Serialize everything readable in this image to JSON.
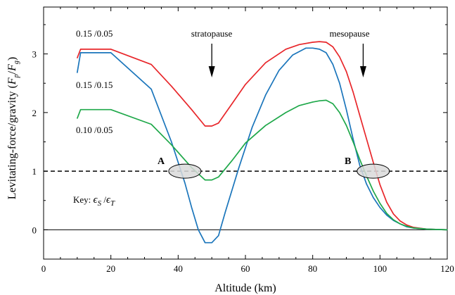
{
  "chart_data": {
    "type": "line",
    "xlabel": "Altitude (km)",
    "ylabel": "Levitating-force/gravity (F_p/F_g)",
    "ylabel_main": "Levitating-force/gravity (",
    "ylabel_fp": "F",
    "ylabel_fp_sub": "p",
    "ylabel_slash": "/",
    "ylabel_fg": "F",
    "ylabel_fg_sub": "g",
    "ylabel_close": ")",
    "xlim": [
      0,
      120
    ],
    "ylim": [
      -0.5,
      3.8
    ],
    "x_ticks": [
      "0",
      "20",
      "40",
      "60",
      "80",
      "100",
      "120"
    ],
    "x_tick_values": [
      0,
      20,
      40,
      60,
      80,
      100,
      120
    ],
    "y_ticks": [
      "0",
      "1",
      "2",
      "3"
    ],
    "y_tick_values": [
      0,
      1,
      2,
      3
    ],
    "grid": false,
    "series": [
      {
        "name": "0.15 /0.05",
        "color": "#e8262a",
        "x": [
          10,
          11,
          20,
          32,
          38,
          44,
          48,
          50,
          52,
          56,
          60,
          66,
          72,
          76,
          80,
          82,
          84,
          86,
          88,
          90,
          92,
          94,
          96,
          98,
          100,
          102,
          104,
          106,
          108,
          110,
          114,
          120
        ],
        "y": [
          2.93,
          3.08,
          3.08,
          2.82,
          2.45,
          2.05,
          1.77,
          1.77,
          1.82,
          2.15,
          2.48,
          2.85,
          3.08,
          3.16,
          3.2,
          3.21,
          3.2,
          3.12,
          2.95,
          2.7,
          2.35,
          1.95,
          1.55,
          1.15,
          0.77,
          0.47,
          0.27,
          0.15,
          0.08,
          0.04,
          0.01,
          0.0
        ]
      },
      {
        "name": "0.15 /0.15",
        "color": "#1a75bb",
        "x": [
          10,
          11,
          20,
          32,
          38,
          42,
          44,
          46,
          48,
          50,
          52,
          54,
          58,
          62,
          66,
          70,
          74,
          78,
          80,
          82,
          84,
          86,
          88,
          90,
          92,
          94,
          96,
          98,
          100,
          102,
          104,
          106,
          108,
          110,
          114,
          120
        ],
        "y": [
          2.68,
          3.02,
          3.02,
          2.4,
          1.5,
          0.8,
          0.38,
          0.0,
          -0.22,
          -0.22,
          -0.1,
          0.3,
          1.05,
          1.75,
          2.3,
          2.72,
          2.98,
          3.1,
          3.1,
          3.08,
          3.02,
          2.82,
          2.5,
          2.05,
          1.55,
          1.1,
          0.78,
          0.55,
          0.38,
          0.25,
          0.16,
          0.1,
          0.05,
          0.03,
          0.01,
          0.0
        ]
      },
      {
        "name": "0.10 /0.05",
        "color": "#1fa84a",
        "x": [
          10,
          11,
          20,
          32,
          38,
          44,
          48,
          50,
          52,
          56,
          60,
          66,
          72,
          76,
          80,
          82,
          84,
          86,
          88,
          90,
          92,
          94,
          96,
          98,
          100,
          102,
          104,
          106,
          108,
          110,
          114,
          120
        ],
        "y": [
          1.9,
          2.05,
          2.05,
          1.8,
          1.45,
          1.06,
          0.85,
          0.85,
          0.9,
          1.18,
          1.48,
          1.78,
          2.0,
          2.12,
          2.18,
          2.2,
          2.21,
          2.15,
          2.0,
          1.78,
          1.5,
          1.2,
          0.92,
          0.66,
          0.45,
          0.28,
          0.17,
          0.1,
          0.06,
          0.03,
          0.01,
          0.0
        ]
      }
    ],
    "reference_lines": [
      {
        "y": 1,
        "style": "dashed",
        "color": "#000000"
      },
      {
        "y": 0,
        "style": "solid",
        "color": "#000000"
      }
    ],
    "annotations": {
      "stratopause": "stratopause",
      "mesopause": "mesopause",
      "point_a": "A",
      "point_b": "B",
      "key_prefix": "Key: ",
      "key_eps1": "ϵ",
      "key_sub1": "S",
      "key_slash": " /",
      "key_eps2": "ϵ",
      "key_sub2": "T"
    },
    "arrows": [
      {
        "name": "stratopause",
        "x": 50
      },
      {
        "name": "mesopause",
        "x": 95
      }
    ],
    "ellipses": [
      {
        "name": "A",
        "x": 42,
        "y": 1
      },
      {
        "name": "B",
        "x": 98,
        "y": 1
      }
    ]
  }
}
